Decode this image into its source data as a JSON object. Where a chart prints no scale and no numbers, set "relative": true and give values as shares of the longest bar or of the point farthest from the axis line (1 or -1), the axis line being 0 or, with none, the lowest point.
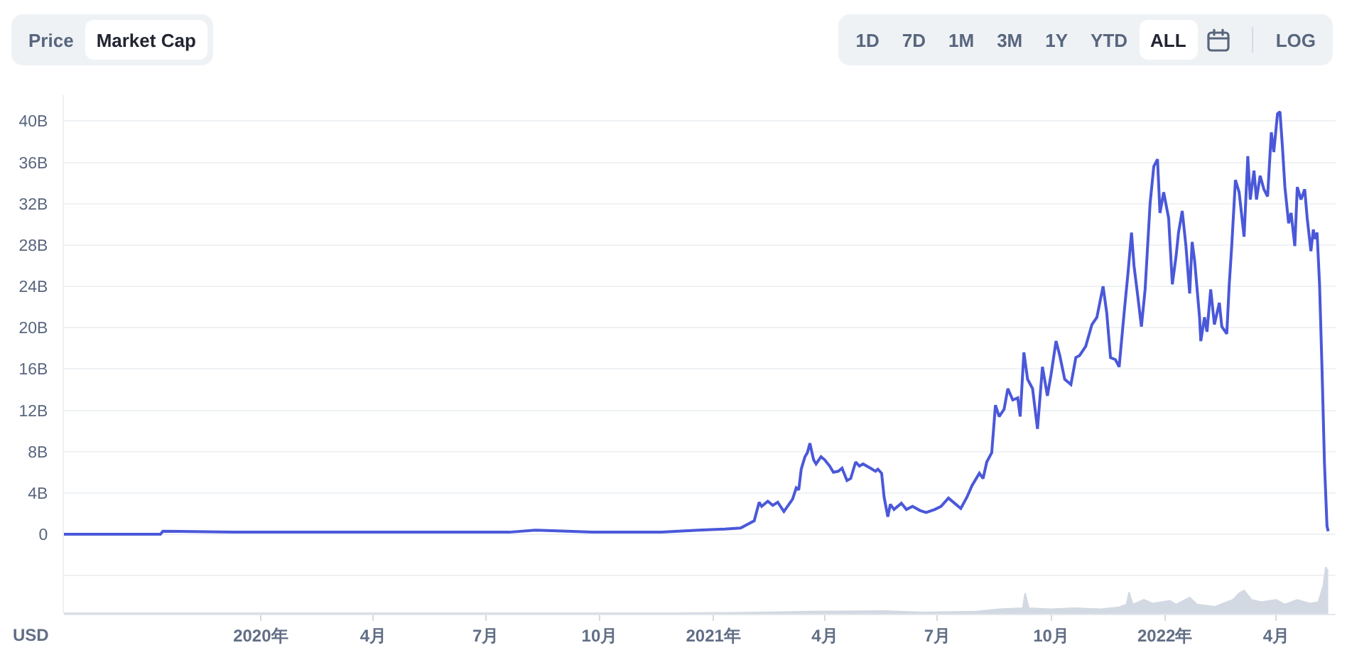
{
  "chart_data": [
    {
      "type": "other",
      "annotations": [
        "Price",
        "Market Cap"
      ]
    },
    {
      "type": "other",
      "annotations": [
        "1D",
        "7D",
        "1M",
        "3M",
        "1Y",
        "YTD",
        "ALL",
        "LOG"
      ]
    },
    {
      "type": "line",
      "ylabel": "USD",
      "color": "#4a58d9",
      "grid": "y",
      "tick_labels": "y",
      "xlim": [
        "2019-07-26",
        "2022-05-19"
      ],
      "ylim": [
        -7.7,
        42.5
      ],
      "yticks": [
        {
          "value": -4,
          "label": null
        },
        0,
        {
          "value": 4,
          "label": "4B"
        },
        {
          "value": 8,
          "label": "8B"
        },
        {
          "value": 12,
          "label": "12B"
        },
        {
          "value": 16,
          "label": "16B"
        },
        {
          "value": 20,
          "label": "20B"
        },
        {
          "value": 24,
          "label": "24B"
        },
        {
          "value": 28,
          "label": "28B"
        },
        {
          "value": 32,
          "label": "32B"
        },
        {
          "value": 36,
          "label": "36B"
        },
        {
          "value": 40,
          "label": "40B"
        }
      ],
      "x": [
        "2019-07-26",
        "2019-10-12",
        "2019-10-14",
        "2019-12-10",
        "2020-02-15",
        "2020-05-10",
        "2020-07-20",
        "2020-08-10",
        "2020-09-05",
        "2020-09-25",
        "2020-11-20",
        "2020-12-20",
        "2021-01-10",
        "2021-01-23",
        "2021-02-03",
        "2021-02-07",
        "2021-02-09",
        "2021-02-14",
        "2021-02-18",
        "2021-02-22",
        "2021-02-27",
        "2021-03-06",
        "2021-03-09",
        "2021-03-11",
        "2021-03-13",
        "2021-03-16",
        "2021-03-18",
        "2021-03-20",
        "2021-03-23",
        "2021-03-25",
        "2021-03-29",
        "2021-04-01",
        "2021-04-05",
        "2021-04-08",
        "2021-04-12",
        "2021-04-15",
        "2021-04-19",
        "2021-04-22",
        "2021-04-26",
        "2021-04-29",
        "2021-05-02",
        "2021-05-08",
        "2021-05-12",
        "2021-05-14",
        "2021-05-17",
        "2021-05-19",
        "2021-05-22",
        "2021-05-24",
        "2021-05-27",
        "2021-06-02",
        "2021-06-06",
        "2021-06-11",
        "2021-06-17",
        "2021-06-22",
        "2021-06-29",
        "2021-07-04",
        "2021-07-10",
        "2021-07-16",
        "2021-07-20",
        "2021-07-25",
        "2021-07-29",
        "2021-08-04",
        "2021-08-07",
        "2021-08-10",
        "2021-08-14",
        "2021-08-17",
        "2021-08-20",
        "2021-08-24",
        "2021-08-27",
        "2021-08-31",
        "2021-09-04",
        "2021-09-06",
        "2021-09-09",
        "2021-09-12",
        "2021-09-16",
        "2021-09-20",
        "2021-09-24",
        "2021-09-28",
        "2021-10-01",
        "2021-10-05",
        "2021-10-08",
        "2021-10-12",
        "2021-10-17",
        "2021-10-21",
        "2021-10-24",
        "2021-10-29",
        "2021-11-03",
        "2021-11-07",
        "2021-11-12",
        "2021-11-15",
        "2021-11-18",
        "2021-11-22",
        "2021-11-25",
        "2021-11-29",
        "2021-12-02",
        "2021-12-05",
        "2021-12-07",
        "2021-12-10",
        "2021-12-13",
        "2021-12-16",
        "2021-12-20",
        "2021-12-23",
        "2021-12-26",
        "2021-12-28",
        "2021-12-31",
        "2022-01-04",
        "2022-01-07",
        "2022-01-10",
        "2022-01-12",
        "2022-01-15",
        "2022-01-18",
        "2022-01-21",
        "2022-01-23",
        "2022-01-25",
        "2022-01-29",
        "2022-01-30",
        "2022-02-02",
        "2022-02-04",
        "2022-02-07",
        "2022-02-10",
        "2022-02-14",
        "2022-02-16",
        "2022-02-20",
        "2022-02-22",
        "2022-02-24",
        "2022-02-27",
        "2022-03-02",
        "2022-03-06",
        "2022-03-09",
        "2022-03-11",
        "2022-03-14",
        "2022-03-16",
        "2022-03-19",
        "2022-03-22",
        "2022-03-25",
        "2022-03-28",
        "2022-03-30",
        "2022-04-02",
        "2022-04-04",
        "2022-04-06",
        "2022-04-08",
        "2022-04-11",
        "2022-04-13",
        "2022-04-16",
        "2022-04-18",
        "2022-04-21",
        "2022-04-24",
        "2022-04-26",
        "2022-04-29",
        "2022-05-01",
        "2022-05-02",
        "2022-05-04",
        "2022-05-06",
        "2022-05-08",
        "2022-05-10",
        "2022-05-12",
        "2022-05-13"
      ],
      "values": [
        0,
        0,
        0.3,
        0.2,
        0.2,
        0.2,
        0.2,
        0.4,
        0.3,
        0.2,
        0.2,
        0.4,
        0.5,
        0.6,
        1.3,
        3.1,
        2.7,
        3.2,
        2.8,
        3.1,
        2.2,
        3.4,
        4.5,
        4.3,
        6.3,
        7.5,
        7.9,
        8.8,
        7.2,
        6.8,
        7.5,
        7.2,
        6.6,
        6.0,
        6.1,
        6.4,
        5.2,
        5.4,
        7.0,
        6.6,
        6.8,
        6.4,
        6.1,
        6.3,
        5.9,
        3.6,
        1.7,
        2.9,
        2.4,
        3.0,
        2.4,
        2.7,
        2.3,
        2.1,
        2.4,
        2.7,
        3.5,
        2.9,
        2.5,
        3.6,
        4.7,
        5.9,
        5.4,
        7.0,
        7.9,
        12.5,
        11.4,
        12.1,
        14.1,
        13.0,
        13.2,
        11.4,
        17.6,
        15.0,
        14.1,
        10.2,
        16.2,
        13.4,
        15.5,
        18.7,
        17.3,
        15.0,
        14.5,
        17.1,
        17.3,
        18.2,
        20.3,
        21.0,
        24.0,
        21.4,
        17.1,
        16.9,
        16.2,
        21.4,
        25.1,
        29.2,
        26.0,
        23.1,
        20.1,
        23.7,
        32.0,
        35.6,
        36.3,
        31.1,
        33.1,
        30.6,
        24.2,
        26.9,
        29.2,
        31.3,
        27.9,
        23.3,
        28.3,
        26.5,
        21.0,
        18.7,
        21.0,
        19.6,
        23.7,
        20.3,
        22.4,
        20.1,
        19.4,
        24.2,
        27.9,
        34.3,
        33.1,
        28.8,
        36.6,
        32.4,
        35.2,
        32.4,
        34.7,
        33.4,
        32.7,
        38.9,
        37.0,
        40.7,
        40.9,
        37.5,
        33.6,
        30.1,
        31.1,
        27.9,
        33.6,
        32.4,
        33.4,
        30.6,
        27.4,
        29.5,
        28.6,
        29.2,
        24.2,
        16.0,
        6.8,
        0.8,
        0.3
      ]
    },
    {
      "type": "area",
      "relative": true,
      "color": "#d3d9e2",
      "tick_labels": "x",
      "xlim": [
        "2019-07-26",
        "2022-05-19"
      ],
      "xticks": [
        {
          "value": "2020-01-01",
          "label": "2020年"
        },
        {
          "value": "2020-04-01",
          "label": "4月"
        },
        {
          "value": "2020-07-01",
          "label": "7月"
        },
        {
          "value": "2020-10-01",
          "label": "10月"
        },
        {
          "value": "2021-01-01",
          "label": "2021年"
        },
        {
          "value": "2021-04-01",
          "label": "4月"
        },
        {
          "value": "2021-07-01",
          "label": "7月"
        },
        {
          "value": "2021-10-01",
          "label": "10月"
        },
        {
          "value": "2022-01-01",
          "label": "2022年"
        },
        {
          "value": "2022-04-01",
          "label": "4月"
        }
      ],
      "x": [
        "2019-07-26",
        "2020-12-01",
        "2021-02-10",
        "2021-03-20",
        "2021-05-20",
        "2021-06-20",
        "2021-08-01",
        "2021-08-20",
        "2021-09-08",
        "2021-09-10",
        "2021-09-13",
        "2021-10-01",
        "2021-10-20",
        "2021-11-10",
        "2021-11-25",
        "2021-12-01",
        "2021-12-03",
        "2021-12-06",
        "2021-12-15",
        "2021-12-22",
        "2022-01-05",
        "2022-01-10",
        "2022-01-21",
        "2022-01-27",
        "2022-02-10",
        "2022-02-25",
        "2022-03-02",
        "2022-03-06",
        "2022-03-12",
        "2022-03-20",
        "2022-04-01",
        "2022-04-08",
        "2022-04-18",
        "2022-04-28",
        "2022-05-05",
        "2022-05-09",
        "2022-05-11",
        "2022-05-13"
      ],
      "values": [
        0.01,
        0.01,
        0.03,
        0.05,
        0.06,
        0.03,
        0.05,
        0.1,
        0.12,
        0.44,
        0.12,
        0.1,
        0.12,
        0.1,
        0.14,
        0.2,
        0.46,
        0.2,
        0.3,
        0.22,
        0.28,
        0.2,
        0.35,
        0.2,
        0.15,
        0.3,
        0.44,
        0.5,
        0.3,
        0.25,
        0.3,
        0.2,
        0.3,
        0.22,
        0.25,
        0.6,
        1,
        0.9
      ]
    }
  ]
}
